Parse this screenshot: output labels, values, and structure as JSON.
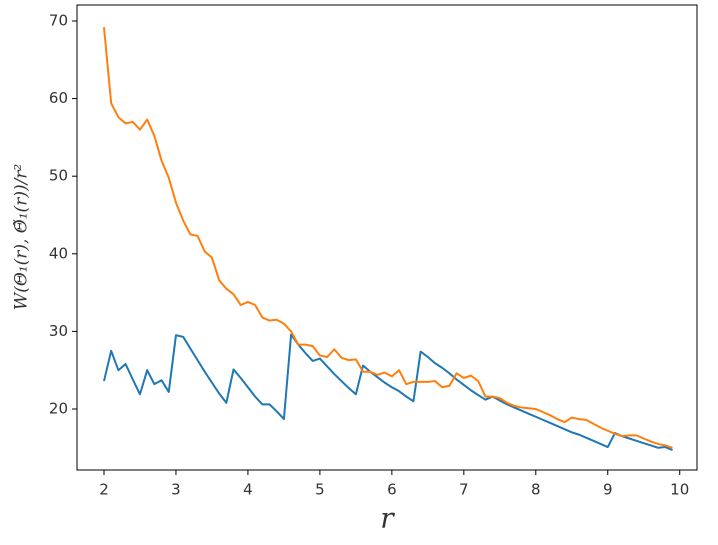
{
  "chart_data": {
    "type": "line",
    "x": [
      2.0,
      2.1,
      2.2,
      2.3,
      2.4,
      2.5,
      2.6,
      2.7,
      2.8,
      2.9,
      3.0,
      3.1,
      3.2,
      3.3,
      3.4,
      3.5,
      3.6,
      3.7,
      3.8,
      3.9,
      4.0,
      4.1,
      4.2,
      4.3,
      4.4,
      4.5,
      4.6,
      4.7,
      4.8,
      4.9,
      5.0,
      5.1,
      5.2,
      5.3,
      5.4,
      5.5,
      5.6,
      5.7,
      5.8,
      5.9,
      6.0,
      6.1,
      6.2,
      6.3,
      6.4,
      6.5,
      6.6,
      6.7,
      6.8,
      6.9,
      7.0,
      7.1,
      7.2,
      7.3,
      7.4,
      7.5,
      7.6,
      7.7,
      7.8,
      7.9,
      8.0,
      8.1,
      8.2,
      8.3,
      8.4,
      8.5,
      8.6,
      8.7,
      8.8,
      8.9,
      9.0,
      9.1,
      9.2,
      9.3,
      9.4,
      9.5,
      9.6,
      9.7,
      9.8,
      9.9
    ],
    "series": [
      {
        "color": "#1f77b4",
        "values": [
          23.6,
          27.5,
          25,
          25.8,
          23.8,
          21.9,
          25,
          23.2,
          23.7,
          22.2,
          29.5,
          29.3,
          27.8,
          26.3,
          24.8,
          23.4,
          22,
          20.8,
          25.1,
          24,
          22.8,
          21.6,
          20.6,
          20.6,
          19.7,
          18.7,
          29.6,
          28.3,
          27.2,
          26.2,
          26.5,
          25.5,
          24.5,
          23.6,
          22.7,
          21.9,
          25.6,
          24.8,
          24.1,
          23.4,
          22.8,
          22.3,
          21.6,
          21,
          27.4,
          26.7,
          25.9,
          25.3,
          24.6,
          23.8,
          23.1,
          22.4,
          21.8,
          21.2,
          21.6,
          21.1,
          20.6,
          20.2,
          19.8,
          19.4,
          19,
          18.6,
          18.2,
          17.8,
          17.4,
          17,
          16.7,
          16.3,
          15.9,
          15.5,
          15.1,
          16.9,
          16.5,
          16.2,
          15.9,
          15.6,
          15.3,
          15,
          15.1,
          14.7
        ]
      },
      {
        "color": "#ff7f0e",
        "values": [
          69.2,
          59.4,
          57.6,
          56.8,
          57,
          56,
          57.3,
          55.2,
          52,
          49.8,
          46.6,
          44.3,
          42.5,
          42.3,
          40.3,
          39.5,
          36.6,
          35.5,
          34.8,
          33.4,
          33.8,
          33.4,
          31.8,
          31.4,
          31.5,
          31,
          30,
          28.3,
          28.3,
          28.1,
          26.9,
          26.7,
          27.7,
          26.6,
          26.3,
          26.4,
          24.8,
          24.8,
          24.4,
          24.7,
          24.2,
          25,
          23.2,
          23.5,
          23.5,
          23.5,
          23.6,
          22.8,
          23,
          24.6,
          24,
          24.3,
          23.6,
          21.6,
          21.6,
          21.4,
          20.8,
          20.4,
          20.2,
          20.1,
          20,
          19.6,
          19.2,
          18.7,
          18.3,
          18.9,
          18.7,
          18.6,
          18.1,
          17.6,
          17.2,
          16.8,
          16.5,
          16.6,
          16.6,
          16.2,
          15.8,
          15.5,
          15.3,
          15
        ]
      }
    ],
    "xlabel": "r",
    "ylabel": "W(Θ₁(r), Θ̃₁(r))/r²",
    "xlim": [
      1.625,
      10.24
    ],
    "ylim": [
      12.14,
      72.06
    ],
    "xticks": [
      2,
      3,
      4,
      5,
      6,
      7,
      8,
      9,
      10
    ],
    "yticks": [
      20,
      30,
      40,
      50,
      60,
      70
    ],
    "grid": false
  }
}
